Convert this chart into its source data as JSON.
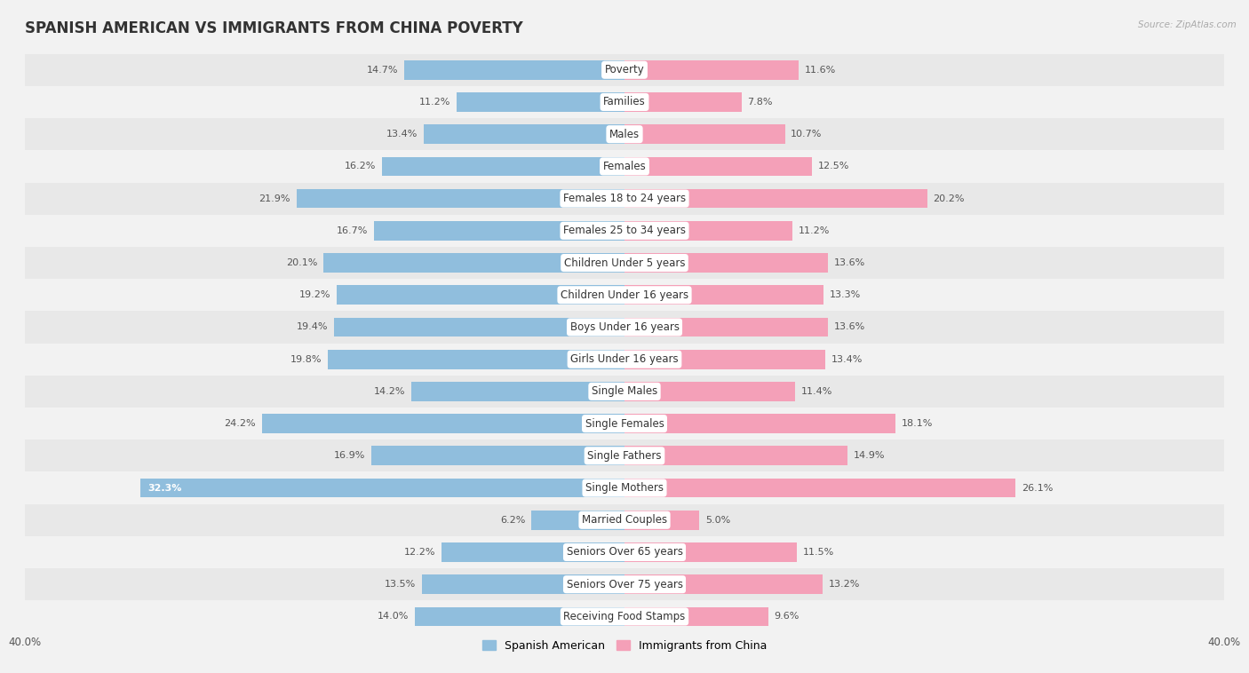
{
  "title": "SPANISH AMERICAN VS IMMIGRANTS FROM CHINA POVERTY",
  "source": "Source: ZipAtlas.com",
  "categories": [
    "Poverty",
    "Families",
    "Males",
    "Females",
    "Females 18 to 24 years",
    "Females 25 to 34 years",
    "Children Under 5 years",
    "Children Under 16 years",
    "Boys Under 16 years",
    "Girls Under 16 years",
    "Single Males",
    "Single Females",
    "Single Fathers",
    "Single Mothers",
    "Married Couples",
    "Seniors Over 65 years",
    "Seniors Over 75 years",
    "Receiving Food Stamps"
  ],
  "spanish_american": [
    14.7,
    11.2,
    13.4,
    16.2,
    21.9,
    16.7,
    20.1,
    19.2,
    19.4,
    19.8,
    14.2,
    24.2,
    16.9,
    32.3,
    6.2,
    12.2,
    13.5,
    14.0
  ],
  "immigrants_china": [
    11.6,
    7.8,
    10.7,
    12.5,
    20.2,
    11.2,
    13.6,
    13.3,
    13.6,
    13.4,
    11.4,
    18.1,
    14.9,
    26.1,
    5.0,
    11.5,
    13.2,
    9.6
  ],
  "xlim": 40.0,
  "bar_height": 0.6,
  "blue_color": "#90bedd",
  "pink_color": "#f4a0b8",
  "background_color": "#f2f2f2",
  "row_color_even": "#e8e8e8",
  "row_color_odd": "#f2f2f2",
  "title_fontsize": 12,
  "label_fontsize": 8.5,
  "value_fontsize": 8,
  "axis_fontsize": 8.5,
  "legend_fontsize": 9
}
